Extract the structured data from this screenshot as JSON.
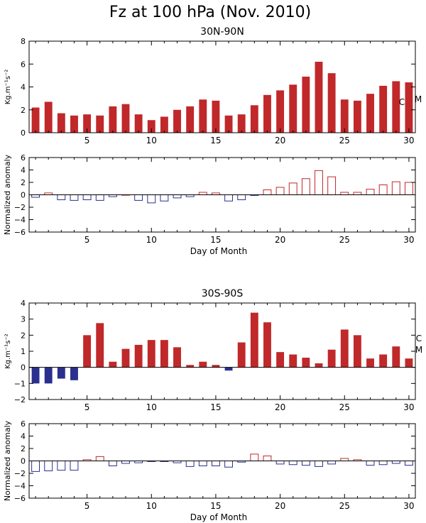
{
  "title": "Fz at 100 hPa (Nov. 2010)",
  "colors": {
    "positive": "#C0282A",
    "negative": "#2B2F8F",
    "axis": "#000000"
  },
  "chart_data": [
    {
      "type": "bar",
      "title": "30N-90N",
      "ylabel": "Kg.m⁻¹s⁻²",
      "xlabel": "",
      "ylim": [
        0,
        8
      ],
      "yticks": [
        "0",
        "2",
        "4",
        "6",
        "8"
      ],
      "xlim": [
        0.5,
        30.5
      ],
      "xticks": [
        "5",
        "10",
        "15",
        "20",
        "25",
        "30"
      ],
      "right_labels": [
        "C",
        "M"
      ],
      "days": [
        1,
        2,
        3,
        4,
        5,
        6,
        7,
        8,
        9,
        10,
        11,
        12,
        13,
        14,
        15,
        16,
        17,
        18,
        19,
        20,
        21,
        22,
        23,
        24,
        25,
        26,
        27,
        28,
        29,
        30
      ],
      "values": [
        2.2,
        2.7,
        1.7,
        1.5,
        1.6,
        1.5,
        2.3,
        2.5,
        1.6,
        1.1,
        1.4,
        2.0,
        2.3,
        2.9,
        2.8,
        1.5,
        1.6,
        2.4,
        3.3,
        3.7,
        4.2,
        4.9,
        6.2,
        5.2,
        2.9,
        2.8,
        3.4,
        4.1,
        4.5,
        4.4
      ],
      "fill": "solid"
    },
    {
      "type": "bar",
      "title": "",
      "ylabel": "Normalized anomaly",
      "xlabel": "Day of Month",
      "ylim": [
        -6,
        6
      ],
      "yticks": [
        "−6",
        "−4",
        "−2",
        "0",
        "2",
        "4",
        "6"
      ],
      "xlim": [
        0.5,
        30.5
      ],
      "xticks": [
        "5",
        "10",
        "15",
        "20",
        "25",
        "30"
      ],
      "days": [
        1,
        2,
        3,
        4,
        5,
        6,
        7,
        8,
        9,
        10,
        11,
        12,
        13,
        14,
        15,
        16,
        17,
        18,
        19,
        20,
        21,
        22,
        23,
        24,
        25,
        26,
        27,
        28,
        29,
        30
      ],
      "values": [
        -0.4,
        0.3,
        -0.8,
        -0.9,
        -0.8,
        -0.9,
        -0.3,
        0.0,
        -0.9,
        -1.3,
        -1.0,
        -0.5,
        -0.3,
        0.4,
        0.3,
        -1.0,
        -0.8,
        -0.1,
        0.8,
        1.2,
        1.9,
        2.6,
        3.9,
        2.9,
        0.4,
        0.4,
        0.9,
        1.6,
        2.1,
        2.0
      ],
      "fill": "outline"
    },
    {
      "type": "bar",
      "title": "30S-90S",
      "ylabel": "Kg.m⁻¹s⁻²",
      "xlabel": "",
      "ylim": [
        -2,
        4
      ],
      "yticks": [
        "−2",
        "−1",
        "0",
        "1",
        "2",
        "3",
        "4"
      ],
      "xlim": [
        0.5,
        30.5
      ],
      "xticks": [
        "5",
        "10",
        "15",
        "20",
        "25",
        "30"
      ],
      "right_labels": [
        "C",
        "M"
      ],
      "days": [
        1,
        2,
        3,
        4,
        5,
        6,
        7,
        8,
        9,
        10,
        11,
        12,
        13,
        14,
        15,
        16,
        17,
        18,
        19,
        20,
        21,
        22,
        23,
        24,
        25,
        26,
        27,
        28,
        29,
        30
      ],
      "values": [
        -1.0,
        -1.0,
        -0.7,
        -0.8,
        2.0,
        2.75,
        0.35,
        1.15,
        1.4,
        1.7,
        1.7,
        1.25,
        0.15,
        0.35,
        0.15,
        -0.2,
        1.55,
        3.4,
        2.8,
        0.95,
        0.8,
        0.6,
        0.25,
        1.1,
        2.35,
        2.0,
        0.55,
        0.8,
        1.3,
        0.55
      ],
      "fill": "solid"
    },
    {
      "type": "bar",
      "title": "",
      "ylabel": "Normalized anomaly",
      "xlabel": "Day of Month",
      "ylim": [
        -6,
        6
      ],
      "yticks": [
        "−6",
        "−4",
        "−2",
        "0",
        "2",
        "4",
        "6"
      ],
      "xlim": [
        0.5,
        30.5
      ],
      "xticks": [
        "5",
        "10",
        "15",
        "20",
        "25",
        "30"
      ],
      "days": [
        1,
        2,
        3,
        4,
        5,
        6,
        7,
        8,
        9,
        10,
        11,
        12,
        13,
        14,
        15,
        16,
        17,
        18,
        19,
        20,
        21,
        22,
        23,
        24,
        25,
        26,
        27,
        28,
        29,
        30
      ],
      "values": [
        -1.7,
        -1.6,
        -1.5,
        -1.5,
        0.2,
        0.7,
        -0.8,
        -0.4,
        -0.3,
        -0.1,
        -0.1,
        -0.3,
        -0.9,
        -0.8,
        -0.8,
        -1.0,
        -0.2,
        1.1,
        0.8,
        -0.5,
        -0.6,
        -0.7,
        -0.9,
        -0.5,
        0.4,
        0.2,
        -0.7,
        -0.6,
        -0.4,
        -0.7
      ],
      "fill": "outline"
    }
  ]
}
